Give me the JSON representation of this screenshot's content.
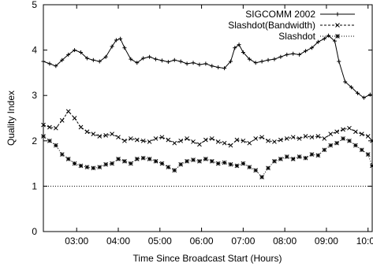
{
  "chart_data": {
    "type": "line",
    "xlabel": "Time Since Broadcast Start (Hours)",
    "ylabel": "Quality Index",
    "xlim": [
      2.2,
      10.1
    ],
    "ylim": [
      0,
      5
    ],
    "x_ticks": [
      3,
      4,
      5,
      6,
      7,
      8,
      9,
      10
    ],
    "x_tick_labels": [
      "03:00",
      "04:00",
      "05:00",
      "06:00",
      "07:00",
      "08:00",
      "09:00",
      "10:00"
    ],
    "y_ticks": [
      0,
      1,
      2,
      3,
      4,
      5
    ],
    "y_tick_labels": [
      "0",
      "1",
      "2",
      "3",
      "4",
      "5"
    ],
    "grid": false,
    "legend_position": "top-right",
    "reference_line": {
      "y": 1,
      "style": "dotted"
    },
    "series": [
      {
        "name": "SIGCOMM 2002",
        "marker": "plus",
        "line": "solid",
        "x": [
          2.2,
          2.35,
          2.5,
          2.65,
          2.8,
          2.95,
          3.1,
          3.25,
          3.4,
          3.55,
          3.7,
          3.85,
          3.95,
          4.05,
          4.15,
          4.3,
          4.45,
          4.6,
          4.75,
          4.9,
          5.05,
          5.2,
          5.35,
          5.5,
          5.65,
          5.8,
          5.95,
          6.1,
          6.25,
          6.4,
          6.55,
          6.7,
          6.8,
          6.9,
          7.0,
          7.15,
          7.3,
          7.45,
          7.6,
          7.75,
          7.9,
          8.05,
          8.2,
          8.35,
          8.5,
          8.65,
          8.8,
          8.95,
          9.05,
          9.2,
          9.3,
          9.45,
          9.6,
          9.75,
          9.9,
          10.05
        ],
        "values": [
          3.75,
          3.7,
          3.65,
          3.78,
          3.9,
          4.0,
          3.95,
          3.82,
          3.78,
          3.75,
          3.85,
          4.08,
          4.22,
          4.25,
          4.05,
          3.8,
          3.72,
          3.82,
          3.85,
          3.8,
          3.77,
          3.74,
          3.78,
          3.75,
          3.7,
          3.72,
          3.68,
          3.7,
          3.65,
          3.62,
          3.6,
          3.75,
          4.05,
          4.12,
          3.95,
          3.8,
          3.72,
          3.75,
          3.78,
          3.8,
          3.85,
          3.9,
          3.92,
          3.9,
          3.98,
          4.05,
          4.18,
          4.25,
          4.32,
          4.2,
          3.75,
          3.3,
          3.18,
          3.05,
          2.95,
          3.02
        ]
      },
      {
        "name": "Slashdot(Bandwidth)",
        "marker": "x",
        "line": "dashed",
        "x": [
          2.2,
          2.35,
          2.5,
          2.65,
          2.8,
          2.95,
          3.1,
          3.25,
          3.4,
          3.55,
          3.7,
          3.85,
          4.0,
          4.15,
          4.3,
          4.45,
          4.6,
          4.75,
          4.9,
          5.05,
          5.2,
          5.35,
          5.5,
          5.65,
          5.8,
          5.95,
          6.1,
          6.25,
          6.4,
          6.55,
          6.7,
          6.85,
          7.0,
          7.15,
          7.3,
          7.45,
          7.6,
          7.75,
          7.9,
          8.05,
          8.2,
          8.35,
          8.5,
          8.65,
          8.8,
          8.95,
          9.1,
          9.25,
          9.4,
          9.55,
          9.7,
          9.85,
          10.0,
          10.1
        ],
        "values": [
          2.35,
          2.3,
          2.28,
          2.45,
          2.65,
          2.5,
          2.3,
          2.2,
          2.15,
          2.1,
          2.12,
          2.15,
          2.08,
          2.0,
          2.05,
          2.02,
          2.0,
          1.98,
          2.05,
          2.08,
          2.02,
          1.95,
          2.0,
          2.05,
          1.98,
          1.92,
          2.02,
          2.05,
          1.98,
          1.95,
          1.9,
          2.02,
          2.0,
          1.95,
          2.05,
          2.08,
          2.0,
          1.98,
          2.02,
          2.05,
          2.08,
          2.05,
          2.1,
          2.08,
          2.1,
          2.05,
          2.15,
          2.2,
          2.25,
          2.28,
          2.2,
          2.15,
          2.1,
          2.0
        ]
      },
      {
        "name": "Slashdot",
        "marker": "star",
        "line": "dotted",
        "x": [
          2.2,
          2.35,
          2.5,
          2.65,
          2.8,
          2.95,
          3.1,
          3.25,
          3.4,
          3.55,
          3.7,
          3.85,
          4.0,
          4.15,
          4.3,
          4.45,
          4.6,
          4.75,
          4.9,
          5.05,
          5.2,
          5.35,
          5.5,
          5.65,
          5.8,
          5.95,
          6.1,
          6.25,
          6.4,
          6.55,
          6.7,
          6.85,
          7.0,
          7.15,
          7.3,
          7.45,
          7.6,
          7.75,
          7.9,
          8.05,
          8.2,
          8.35,
          8.5,
          8.65,
          8.8,
          8.95,
          9.1,
          9.25,
          9.4,
          9.55,
          9.7,
          9.85,
          10.0,
          10.1
        ],
        "values": [
          2.1,
          2.0,
          1.9,
          1.7,
          1.6,
          1.5,
          1.45,
          1.42,
          1.4,
          1.42,
          1.48,
          1.5,
          1.6,
          1.55,
          1.5,
          1.6,
          1.62,
          1.6,
          1.55,
          1.5,
          1.42,
          1.35,
          1.48,
          1.55,
          1.58,
          1.55,
          1.6,
          1.55,
          1.5,
          1.52,
          1.48,
          1.45,
          1.5,
          1.42,
          1.35,
          1.2,
          1.4,
          1.55,
          1.6,
          1.65,
          1.6,
          1.65,
          1.62,
          1.7,
          1.68,
          1.8,
          1.9,
          1.95,
          2.05,
          2.0,
          1.9,
          1.8,
          1.7,
          1.45
        ]
      }
    ]
  }
}
